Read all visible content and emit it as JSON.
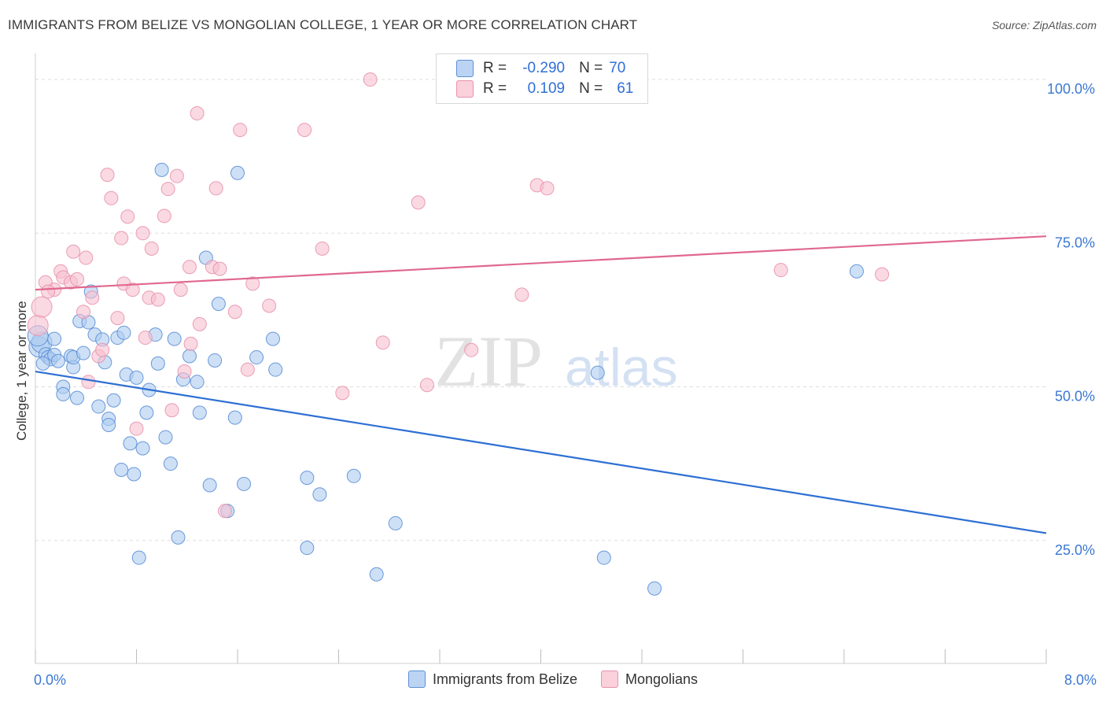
{
  "title": "IMMIGRANTS FROM BELIZE VS MONGOLIAN COLLEGE, 1 YEAR OR MORE CORRELATION CHART",
  "source": "Source: ZipAtlas.com",
  "watermark": {
    "zip": "ZIP",
    "atlas": "atlas"
  },
  "stats": {
    "belize": {
      "r_label": "R =",
      "r_value": "-0.290",
      "n_label": "N =",
      "n_value": "70"
    },
    "mongolians": {
      "r_label": "R =",
      "r_value": "0.109",
      "n_label": "N =",
      "n_value": "61"
    }
  },
  "colors": {
    "blue_fill": "#aecbf0",
    "blue_stroke": "#5b8fd6",
    "blue_line": "#2d6fd3",
    "pink_fill": "#f6c0d0",
    "pink_stroke": "#e893ad",
    "pink_line": "#e0688f",
    "grid": "#dddddd",
    "tick_label": "#3b78d4"
  },
  "chart_data": {
    "type": "scatter",
    "title": "IMMIGRANTS FROM BELIZE VS MONGOLIAN COLLEGE, 1 YEAR OR MORE CORRELATION CHART",
    "xlabel": "",
    "ylabel": "College, 1 year or more",
    "xlim": [
      0,
      8
    ],
    "ylim": [
      5,
      105
    ],
    "x_tick_labels": [
      "0.0%",
      "8.0%"
    ],
    "y_ticks": [
      25,
      50,
      75,
      100
    ],
    "y_tick_labels": [
      "25.0%",
      "50.0%",
      "75.0%",
      "100.0%"
    ],
    "grid": true,
    "legend_position": "bottom",
    "series": [
      {
        "name": "Immigrants from Belize",
        "color": "#aecbf0",
        "trend": {
          "x": [
            0,
            8
          ],
          "y": [
            52.5,
            26.2
          ]
        },
        "points": [
          [
            0.03,
            56.5
          ],
          [
            0.05,
            57.2
          ],
          [
            0.08,
            55.3
          ],
          [
            0.1,
            54.8
          ],
          [
            0.12,
            54.5
          ],
          [
            0.15,
            55.2
          ],
          [
            0.15,
            57.8
          ],
          [
            0.18,
            54.2
          ],
          [
            0.22,
            50.0
          ],
          [
            0.22,
            48.8
          ],
          [
            0.28,
            55.0
          ],
          [
            0.3,
            53.2
          ],
          [
            0.3,
            54.8
          ],
          [
            0.33,
            48.2
          ],
          [
            0.35,
            60.7
          ],
          [
            0.38,
            55.5
          ],
          [
            0.42,
            60.5
          ],
          [
            0.44,
            65.5
          ],
          [
            0.47,
            58.5
          ],
          [
            0.5,
            46.8
          ],
          [
            0.53,
            57.7
          ],
          [
            0.55,
            54.0
          ],
          [
            0.58,
            44.8
          ],
          [
            0.58,
            43.8
          ],
          [
            0.62,
            47.8
          ],
          [
            0.65,
            58.0
          ],
          [
            0.68,
            36.5
          ],
          [
            0.7,
            58.8
          ],
          [
            0.72,
            52.0
          ],
          [
            0.75,
            40.8
          ],
          [
            0.78,
            35.8
          ],
          [
            0.8,
            51.5
          ],
          [
            0.82,
            22.2
          ],
          [
            0.85,
            40.0
          ],
          [
            0.88,
            45.8
          ],
          [
            0.9,
            49.5
          ],
          [
            0.95,
            58.5
          ],
          [
            0.97,
            53.8
          ],
          [
            1.0,
            85.3
          ],
          [
            1.03,
            41.8
          ],
          [
            1.07,
            37.5
          ],
          [
            1.1,
            57.8
          ],
          [
            1.13,
            25.5
          ],
          [
            1.17,
            51.2
          ],
          [
            1.22,
            55.0
          ],
          [
            1.28,
            50.8
          ],
          [
            1.3,
            45.8
          ],
          [
            1.35,
            71.0
          ],
          [
            1.38,
            34.0
          ],
          [
            1.42,
            54.3
          ],
          [
            1.45,
            63.5
          ],
          [
            1.52,
            29.8
          ],
          [
            1.58,
            45.0
          ],
          [
            1.6,
            84.8
          ],
          [
            1.65,
            34.2
          ],
          [
            1.75,
            54.8
          ],
          [
            1.88,
            57.8
          ],
          [
            1.9,
            52.8
          ],
          [
            2.15,
            35.2
          ],
          [
            2.15,
            23.8
          ],
          [
            2.25,
            32.5
          ],
          [
            2.52,
            35.5
          ],
          [
            2.7,
            19.5
          ],
          [
            2.85,
            27.8
          ],
          [
            4.45,
            52.3
          ],
          [
            4.5,
            22.2
          ],
          [
            4.9,
            17.2
          ],
          [
            6.5,
            68.8
          ],
          [
            0.02,
            58.3
          ],
          [
            0.06,
            53.8
          ]
        ]
      },
      {
        "name": "Mongolians",
        "color": "#f6c0d0",
        "trend": {
          "x": [
            0,
            8
          ],
          "y": [
            65.8,
            74.5
          ]
        },
        "points": [
          [
            0.02,
            60.0
          ],
          [
            0.05,
            63.0
          ],
          [
            0.08,
            67.0
          ],
          [
            0.15,
            65.8
          ],
          [
            0.2,
            68.8
          ],
          [
            0.22,
            67.8
          ],
          [
            0.28,
            67.0
          ],
          [
            0.3,
            72.0
          ],
          [
            0.33,
            67.5
          ],
          [
            0.38,
            62.2
          ],
          [
            0.4,
            71.0
          ],
          [
            0.42,
            50.8
          ],
          [
            0.45,
            64.5
          ],
          [
            0.5,
            55.0
          ],
          [
            0.53,
            56.0
          ],
          [
            0.57,
            84.5
          ],
          [
            0.6,
            80.7
          ],
          [
            0.65,
            61.2
          ],
          [
            0.68,
            74.2
          ],
          [
            0.7,
            66.8
          ],
          [
            0.73,
            77.7
          ],
          [
            0.77,
            65.8
          ],
          [
            0.8,
            43.2
          ],
          [
            0.85,
            75.0
          ],
          [
            0.87,
            58.0
          ],
          [
            0.9,
            64.5
          ],
          [
            0.92,
            72.5
          ],
          [
            0.97,
            64.2
          ],
          [
            1.02,
            77.8
          ],
          [
            1.05,
            82.2
          ],
          [
            1.08,
            46.2
          ],
          [
            1.12,
            84.3
          ],
          [
            1.15,
            65.8
          ],
          [
            1.18,
            52.5
          ],
          [
            1.22,
            69.5
          ],
          [
            1.23,
            57.0
          ],
          [
            1.28,
            94.5
          ],
          [
            1.3,
            60.2
          ],
          [
            1.4,
            69.5
          ],
          [
            1.43,
            82.3
          ],
          [
            1.46,
            69.2
          ],
          [
            1.5,
            29.8
          ],
          [
            1.58,
            62.2
          ],
          [
            1.62,
            91.8
          ],
          [
            1.68,
            52.8
          ],
          [
            1.72,
            66.8
          ],
          [
            1.85,
            63.2
          ],
          [
            2.13,
            91.8
          ],
          [
            2.27,
            72.5
          ],
          [
            2.43,
            49.0
          ],
          [
            2.65,
            100.0
          ],
          [
            2.75,
            57.2
          ],
          [
            3.03,
            80.0
          ],
          [
            3.1,
            50.3
          ],
          [
            3.45,
            56.0
          ],
          [
            3.85,
            65.0
          ],
          [
            3.97,
            82.8
          ],
          [
            4.05,
            82.3
          ],
          [
            5.9,
            69.0
          ],
          [
            6.7,
            68.3
          ],
          [
            0.1,
            65.5
          ]
        ]
      }
    ]
  }
}
